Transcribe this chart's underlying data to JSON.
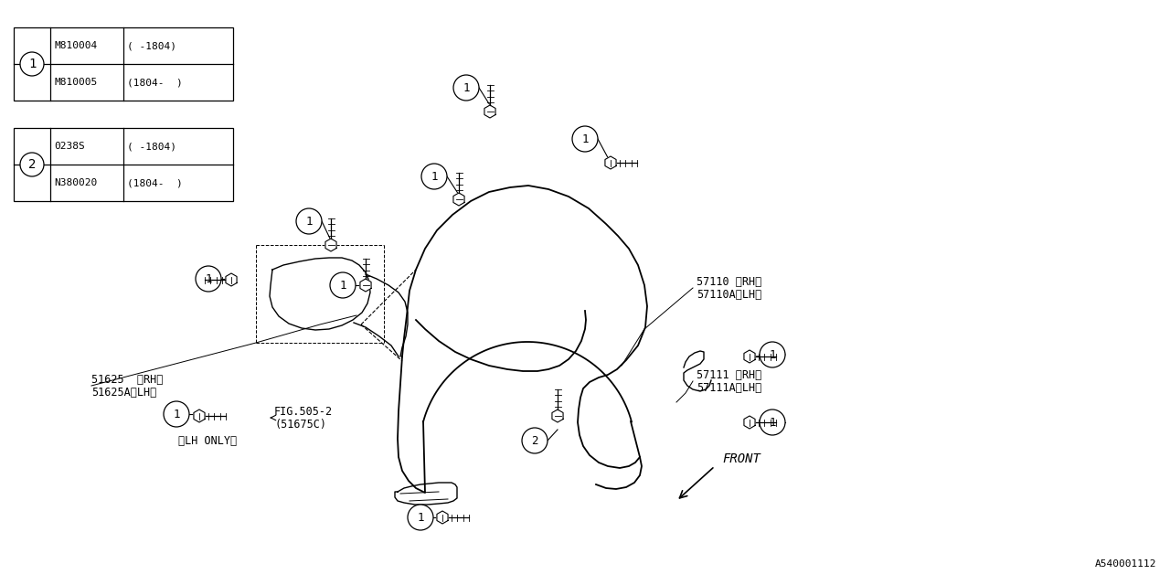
{
  "bg_color": "#ffffff",
  "line_color": "#000000",
  "diagram_id": "A540001112",
  "table1": {
    "circle_num": "1",
    "rows": [
      [
        "M810004",
        "(  -1804〉"
      ],
      [
        "M810005",
        "〈1804-  〉"
      ]
    ]
  },
  "table2": {
    "circle_num": "2",
    "rows": [
      [
        "0238S",
        "(  -1804〉"
      ],
      [
        "N380020",
        "〈1804-  〉"
      ]
    ]
  }
}
